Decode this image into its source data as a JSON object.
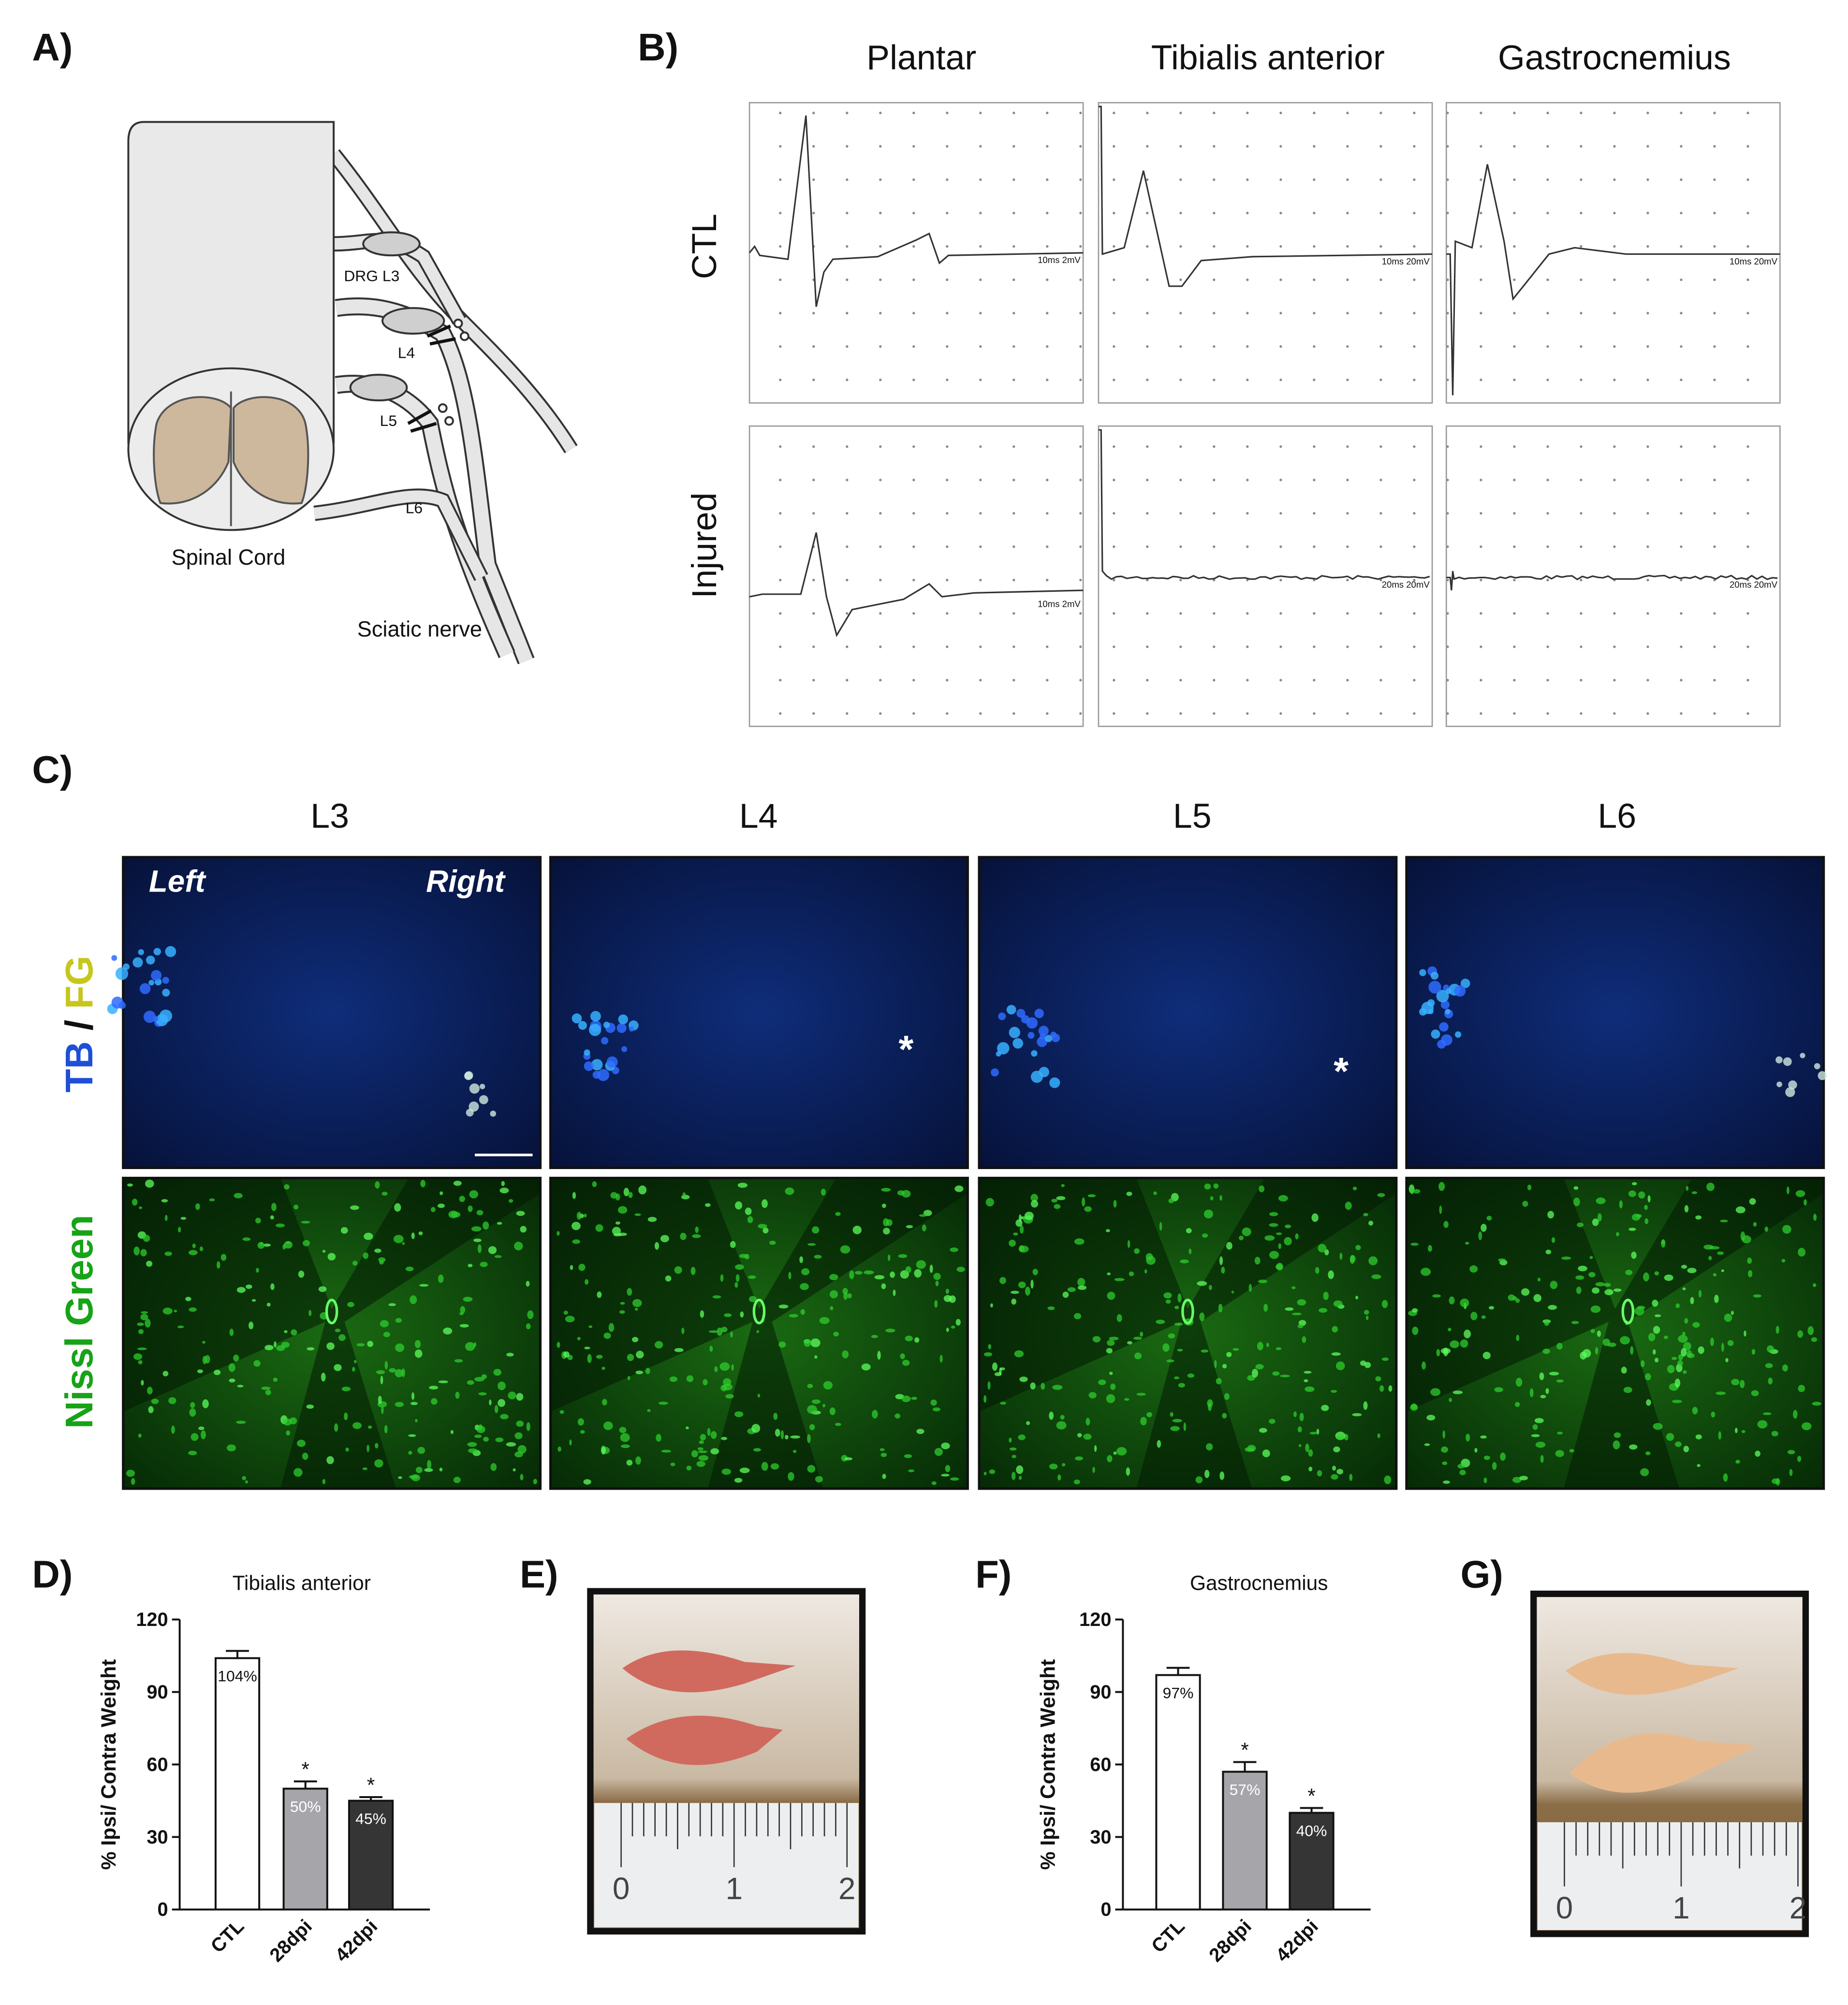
{
  "panel_labels": [
    "A)",
    "B)",
    "C)",
    "D)",
    "E)",
    "F)",
    "G)"
  ],
  "panel_a": {
    "labels": [
      "DRG L3",
      "L4",
      "L5",
      "L6"
    ],
    "spinal_cord": "Spinal Cord",
    "sciatic_nerve": "Sciatic nerve"
  },
  "panel_b": {
    "columns": [
      "Plantar",
      "Tibialis anterior",
      "Gastrocnemius"
    ],
    "rows": [
      "CTL",
      "Injured"
    ],
    "scale_labels": [
      [
        "10ms 2mV",
        "10ms 20mV",
        "10ms 20mV"
      ],
      [
        "10ms 2mV",
        "20ms 20mV",
        "20ms 20mV"
      ]
    ]
  },
  "panel_c": {
    "columns": [
      "L3",
      "L4",
      "L5",
      "L6"
    ],
    "stain_top": {
      "tb": "TB",
      "slash": "/",
      "fg": "FG"
    },
    "stain_bottom": "Nissl Green",
    "left": "Left",
    "right": "Right",
    "markers": [
      "*",
      "*"
    ]
  },
  "panel_e": {
    "ruler": [
      "0",
      "1",
      "2"
    ]
  },
  "panel_g": {
    "ruler": [
      "0",
      "1",
      "2"
    ]
  },
  "chart_data": [
    {
      "type": "bar",
      "title": "Tibialis anterior",
      "ylabel": "% Ipsi/ Contra Weight",
      "categories": [
        "CTL",
        "28dpi",
        "42dpi"
      ],
      "values": [
        104,
        50,
        45
      ],
      "errors": [
        3,
        3,
        1.5
      ],
      "value_labels": [
        "104%",
        "50%",
        "45%"
      ],
      "colors": [
        "#ffffff",
        "#a6a6aa",
        "#353535"
      ],
      "ylim": [
        0,
        120
      ],
      "yticks": [
        0,
        30,
        60,
        90,
        120
      ],
      "annotations": [
        {
          "text": "*",
          "category": "28dpi"
        },
        {
          "text": "*",
          "category": "42dpi"
        }
      ]
    },
    {
      "type": "bar",
      "title": "Gastrocnemius",
      "ylabel": "% Ipsi/ Contra Weight",
      "categories": [
        "CTL",
        "28dpi",
        "42dpi"
      ],
      "values": [
        97,
        57,
        40
      ],
      "errors": [
        3,
        4,
        2
      ],
      "value_labels": [
        "97%",
        "57%",
        "40%"
      ],
      "colors": [
        "#ffffff",
        "#a6a6aa",
        "#353535"
      ],
      "ylim": [
        0,
        120
      ],
      "yticks": [
        0,
        30,
        60,
        90,
        120
      ],
      "annotations": [
        {
          "text": "*",
          "category": "28dpi"
        },
        {
          "text": "*",
          "category": "42dpi"
        }
      ]
    }
  ]
}
